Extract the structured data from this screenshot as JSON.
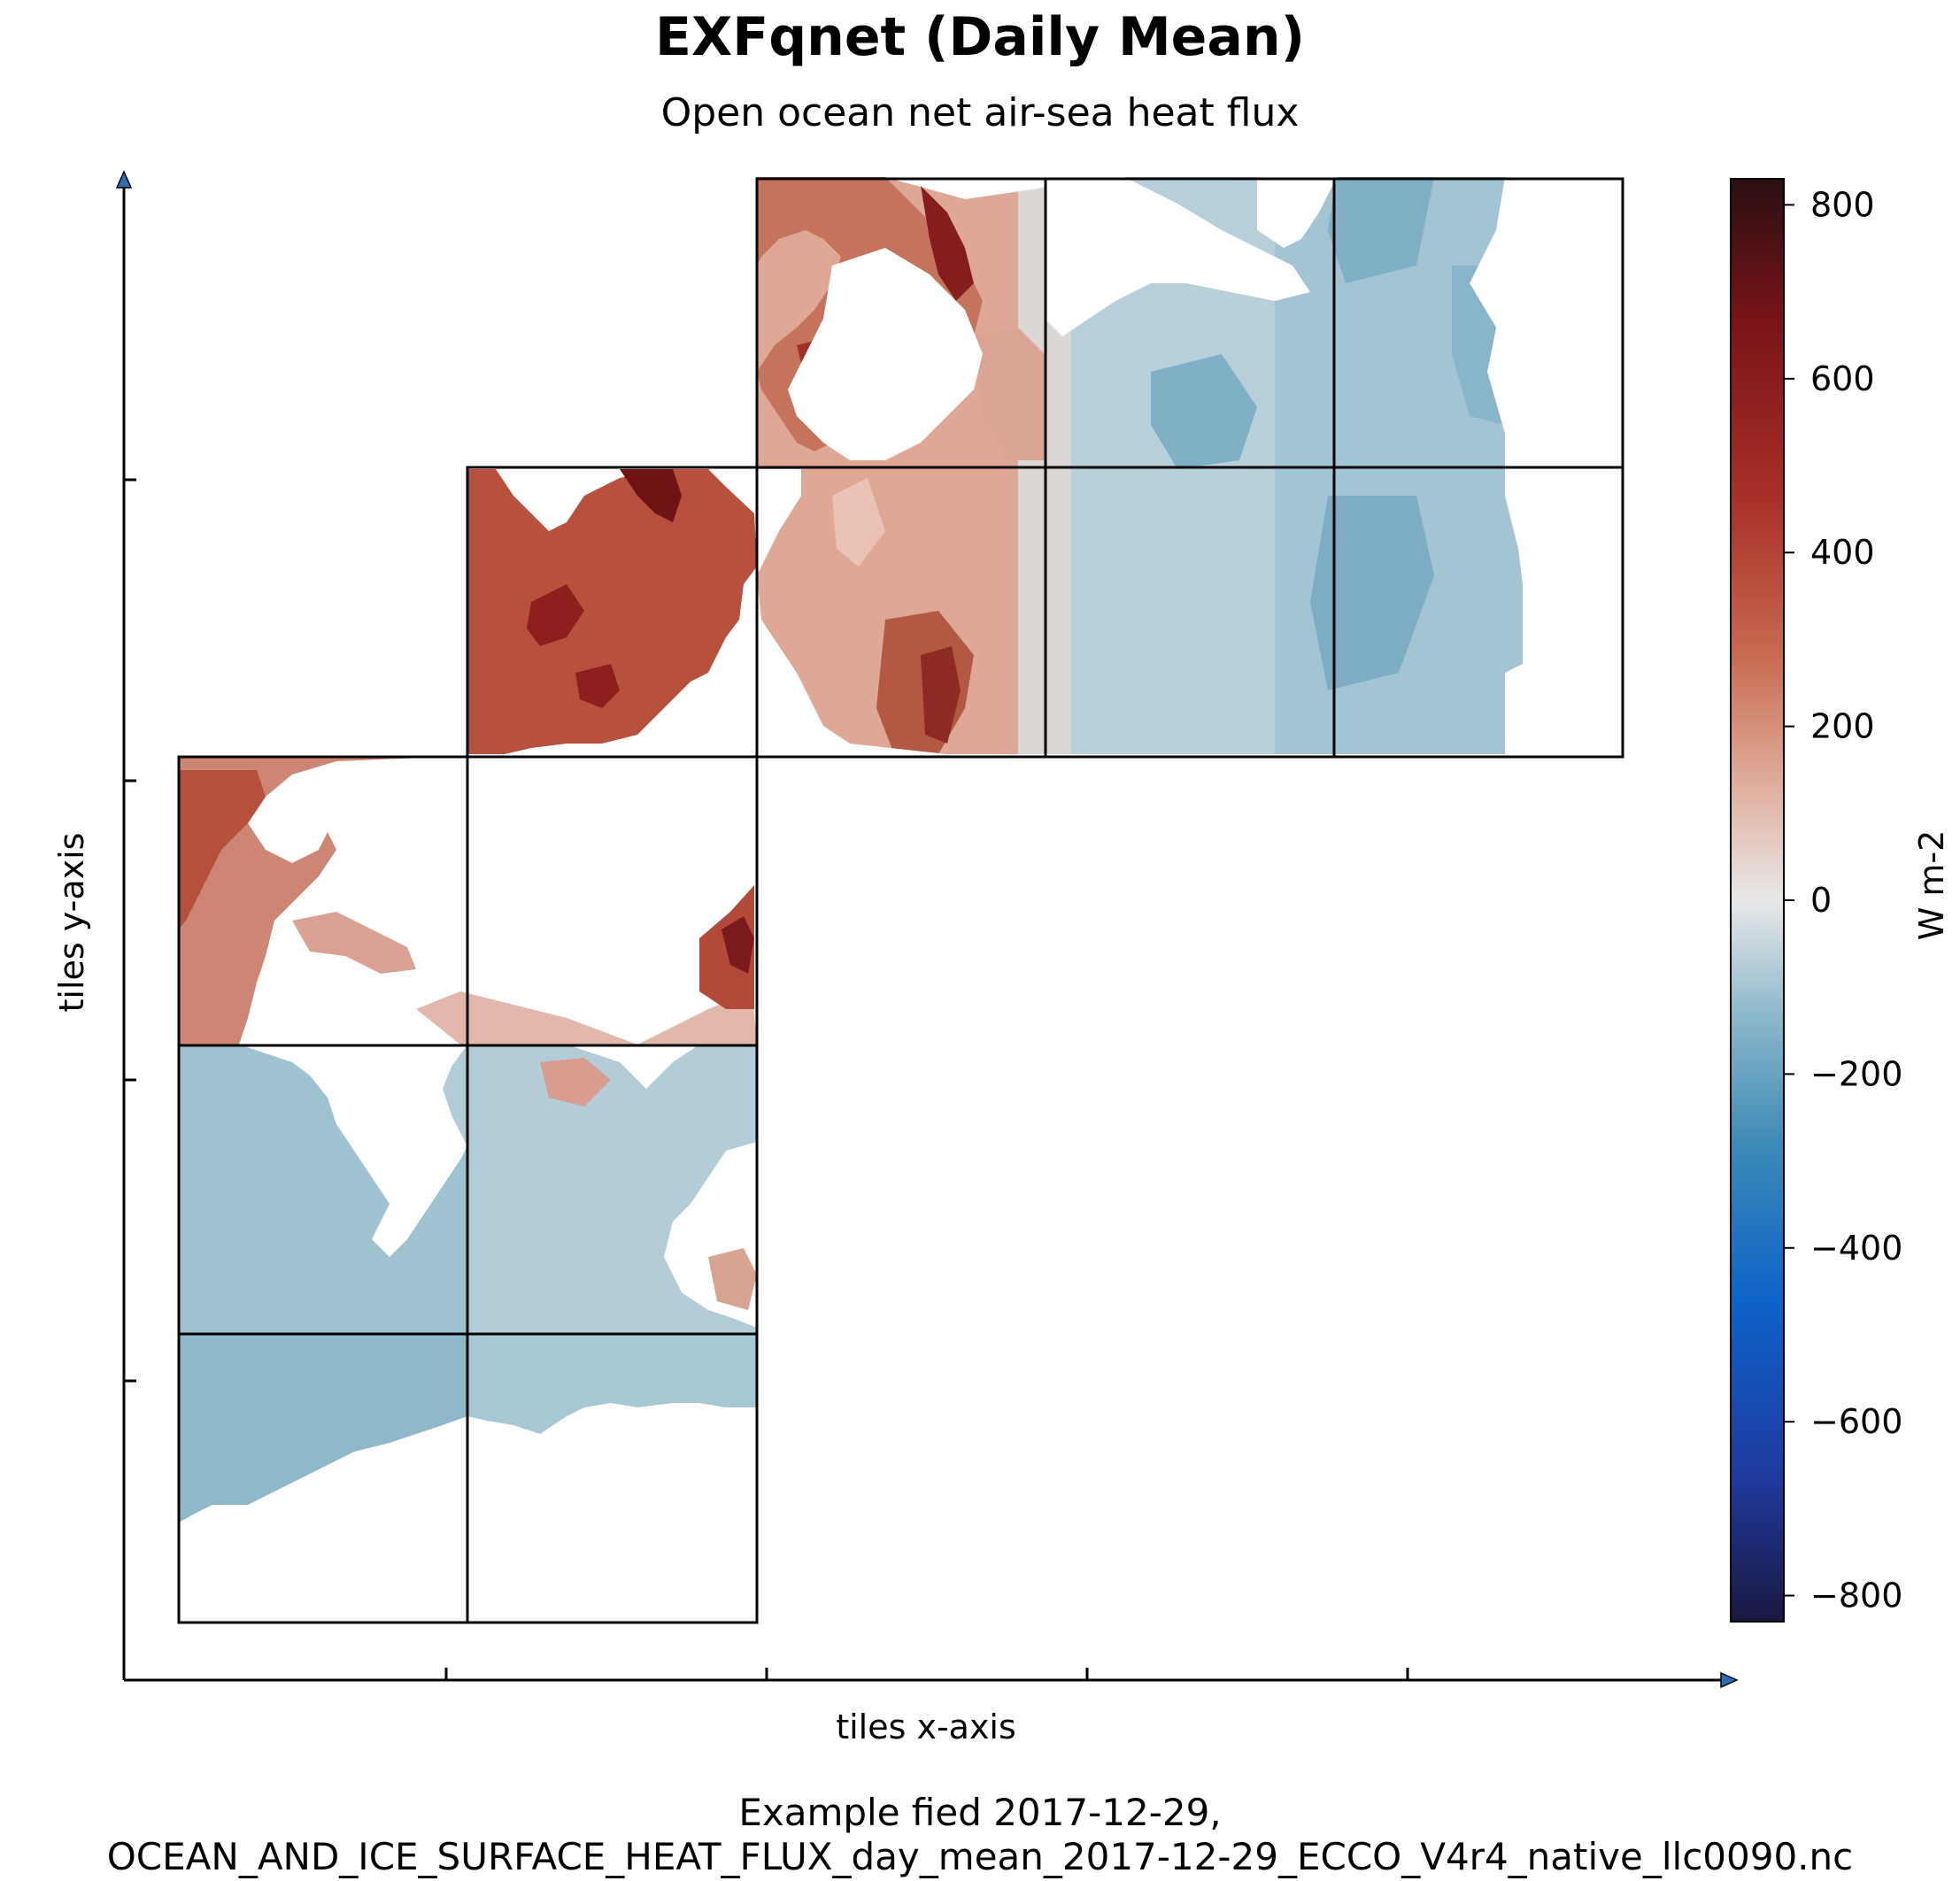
{
  "chart_data": {
    "type": "heatmap",
    "title": "EXFqnet (Daily Mean)",
    "subtitle": "Open ocean net air-sea heat flux",
    "xlabel": "tiles x-axis",
    "ylabel": "tiles y-axis",
    "caption_line1": "Example fied 2017-12-29,",
    "caption_line2": "OCEAN_AND_ICE_SURFACE_HEAT_FLUX_day_mean_2017-12-29_ECCO_V4r4_native_llc0090.nc",
    "colorbar": {
      "label": "W m-2",
      "range": [
        -830,
        830
      ],
      "ticks": [
        800,
        600,
        400,
        200,
        0,
        -200,
        -400,
        -600,
        -800
      ],
      "tick_labels": [
        "800",
        "600",
        "400",
        "200",
        "0",
        "−200",
        "−400",
        "−600",
        "−800"
      ],
      "colormap": "diverging (dark navy → blue → light blue → white → salmon → red → dark maroon)",
      "colors": [
        "#1a1840",
        "#1f3a9e",
        "#0d62c9",
        "#3c8ab6",
        "#8cb8cb",
        "#e8e8e8",
        "#e0ae9c",
        "#c86a50",
        "#a82f28",
        "#7a1418",
        "#2a0f12"
      ]
    },
    "grid": "tile boundaries (llc90 native tiles)",
    "tile_mean_values": [
      {
        "col": 0,
        "row": 0,
        "value": 280
      },
      {
        "col": 0,
        "row": 1,
        "value": -130
      },
      {
        "col": 0,
        "row": 2,
        "value": -230
      },
      {
        "col": 1,
        "row": 0,
        "value": 150
      },
      {
        "col": 1,
        "row": 1,
        "value": -110
      },
      {
        "col": 1,
        "row": 2,
        "value": -200
      },
      {
        "col": 2,
        "row": 0,
        "value": 520
      },
      {
        "col": 2,
        "row": 1,
        "value": 230
      },
      {
        "col": 3,
        "row": 0,
        "value": 280
      },
      {
        "col": 3,
        "row": 1,
        "value": 200
      },
      {
        "col": 4,
        "row": 0,
        "value": -170
      },
      {
        "col": 4,
        "row": 1,
        "value": -140
      },
      {
        "col": 5,
        "row": 0,
        "value": -260
      },
      {
        "col": 5,
        "row": 1,
        "value": -260
      }
    ]
  }
}
